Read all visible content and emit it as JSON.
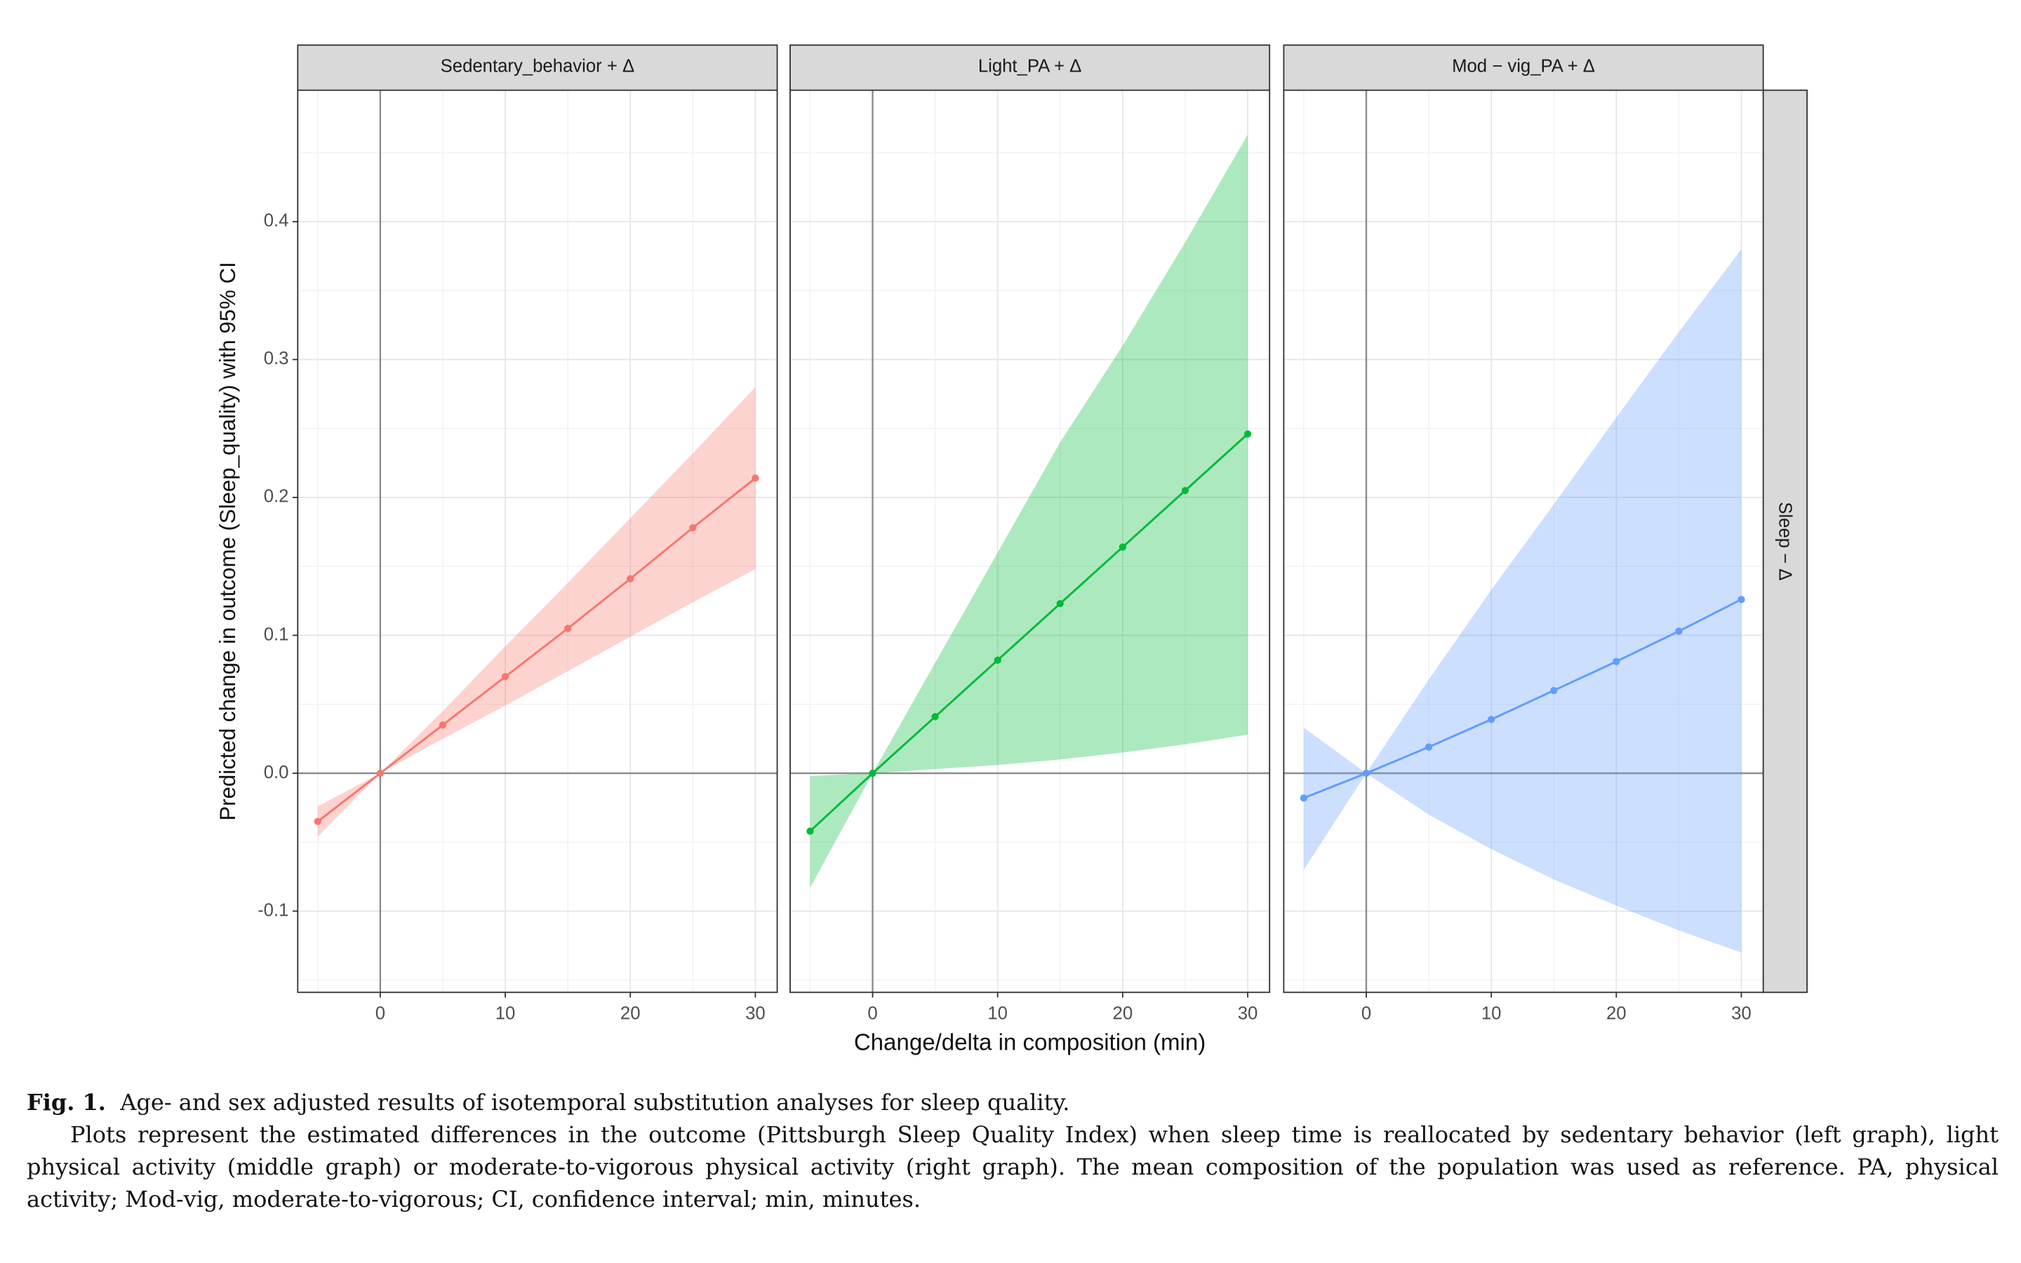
{
  "chart_data": {
    "type": "line",
    "ylabel": "Predicted change in outcome (Sleep_quality) with 95% CI",
    "xlabel": "Change/delta in composition (min)",
    "row_strip": "Sleep − Δ",
    "xlim": [
      -6.6,
      31.75
    ],
    "xticks": [
      0,
      10,
      20,
      30
    ],
    "ylim": [
      -0.1589,
      0.4953
    ],
    "yticks": [
      -0.1,
      {
        "value": 0,
        "label": "0.0"
      },
      0.1,
      0.2,
      0.3,
      0.4
    ],
    "grid": true,
    "x": [
      -5,
      0,
      5,
      10,
      15,
      20,
      25,
      30
    ],
    "panels": [
      {
        "title": "Sedentary_behavior + Δ",
        "color": "#f8766d",
        "values": [
          -0.035,
          0,
          0.035,
          0.07,
          0.105,
          0.141,
          0.178,
          0.214
        ],
        "lower": [
          -0.046,
          0,
          0.025,
          0.049,
          0.074,
          0.099,
          0.124,
          0.148
        ],
        "upper": [
          -0.024,
          0,
          0.045,
          0.092,
          0.138,
          0.185,
          0.232,
          0.28
        ]
      },
      {
        "title": "Light_PA + Δ",
        "color": "#00ba38",
        "values": [
          -0.042,
          0,
          0.041,
          0.082,
          0.123,
          0.164,
          0.205,
          0.246
        ],
        "lower": [
          -0.083,
          0,
          0.003,
          0.006,
          0.01,
          0.015,
          0.021,
          0.028
        ],
        "upper": [
          -0.002,
          0,
          0.08,
          0.16,
          0.24,
          0.31,
          0.385,
          0.463
        ]
      },
      {
        "title": "Mod − vig_PA + Δ",
        "color": "#619cff",
        "values": [
          -0.018,
          0,
          0.019,
          0.039,
          0.06,
          0.081,
          0.103,
          0.126
        ],
        "lower": [
          -0.07,
          0,
          -0.03,
          -0.055,
          -0.077,
          -0.096,
          -0.114,
          -0.13
        ],
        "upper": [
          0.033,
          0,
          0.068,
          0.133,
          0.195,
          0.258,
          0.32,
          0.38
        ]
      }
    ]
  },
  "caption": {
    "label": "Fig. 1.",
    "title": "Age- and sex adjusted results of isotemporal substitution analyses for sleep quality.",
    "text": "Plots represent the estimated differences in the outcome (Pittsburgh Sleep Quality Index) when sleep time is reallocated by sedentary behavior (left graph), light physical activity (middle graph) or moderate-to-vigorous physical activity (right graph). The mean composition of the population was used as reference. PA, physical activity; Mod-vig, moderate-to-vigorous; CI, confidence interval; min, minutes."
  }
}
